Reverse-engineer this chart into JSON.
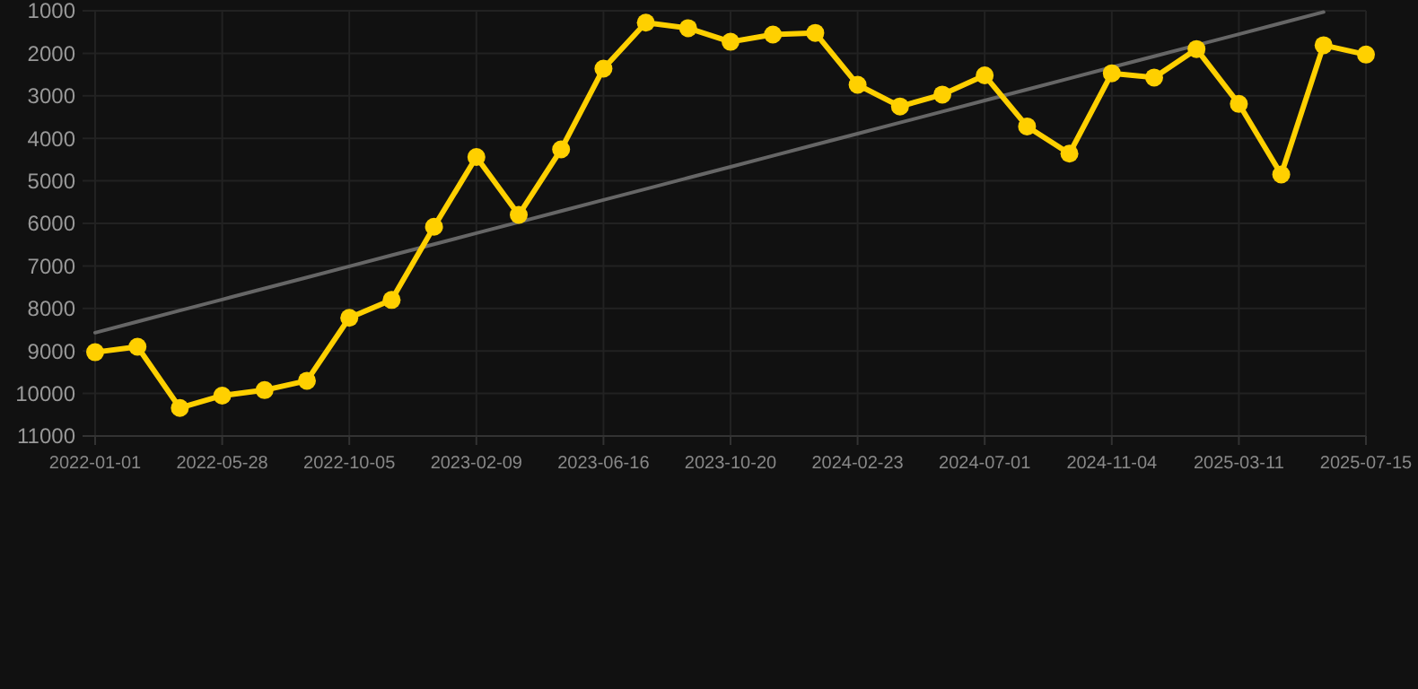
{
  "chart_data": {
    "type": "line",
    "categories": [
      "2022-01-01",
      null,
      null,
      "2022-05-28",
      null,
      null,
      "2022-10-05",
      null,
      null,
      "2023-02-09",
      null,
      null,
      "2023-06-16",
      null,
      null,
      "2023-10-20",
      null,
      null,
      "2024-02-23",
      null,
      null,
      "2024-07-01",
      null,
      null,
      "2024-11-04",
      null,
      null,
      "2025-03-11",
      null,
      null,
      "2025-07-15"
    ],
    "series": [
      {
        "color": "#ffd000",
        "marker": "circle",
        "values": [
          9030,
          8900,
          10340,
          10050,
          9920,
          9700,
          8220,
          7800,
          6080,
          4440,
          5800,
          4260,
          2360,
          1280,
          1410,
          1730,
          1560,
          1520,
          2740,
          3250,
          2970,
          2520,
          3720,
          4360,
          2470,
          2570,
          1900,
          3190,
          4850,
          1810,
          2030
        ]
      },
      {
        "type": "line",
        "color": "#666666",
        "marker": "none",
        "values": [
          8570,
          8310,
          8050,
          7790,
          7530,
          7270,
          7010,
          6750,
          6490,
          6230,
          5970,
          5710,
          5450,
          5190,
          4930,
          4670,
          4410,
          4150,
          3890,
          3630,
          3370,
          3110,
          2850,
          2590,
          2330,
          2070,
          1810,
          1550,
          1290,
          1030,
          null
        ]
      }
    ],
    "ylim": [
      11000,
      1000
    ],
    "yticks": [
      1000,
      2000,
      3000,
      4000,
      5000,
      6000,
      7000,
      8000,
      9000,
      10000,
      11000
    ],
    "grid": true
  }
}
